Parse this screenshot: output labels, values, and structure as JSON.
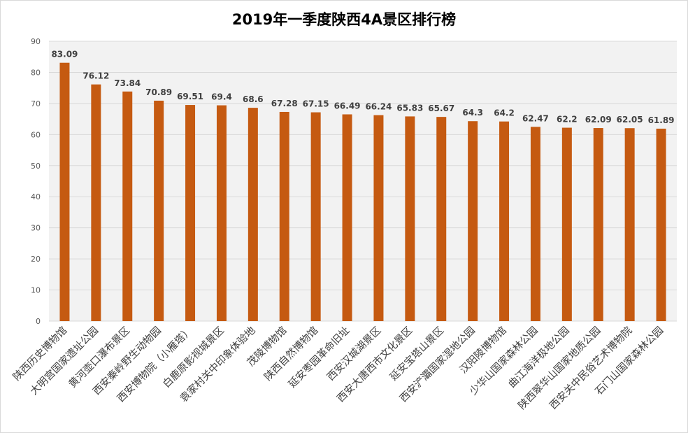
{
  "chart_data": {
    "type": "bar",
    "title": "2019年一季度陕西4A景区排行榜",
    "xlabel": "",
    "ylabel": "",
    "ylim": [
      0,
      90
    ],
    "yticks": [
      0,
      10,
      20,
      30,
      40,
      50,
      60,
      70,
      80,
      90
    ],
    "grid": true,
    "legend": "none",
    "bar_color": "#c55a11",
    "plot_background": "#f2f2f2",
    "categories": [
      "陕西历史博物馆",
      "大明宫国家遗址公园",
      "黄河壶口瀑布景区",
      "西安秦岭野生动物园",
      "西安博物院（小雁塔）",
      "白鹿原影视城景区",
      "袁家村关中印象体验地",
      "茂陵博物馆",
      "陕西自然博物馆",
      "延安枣园革命旧址",
      "西安汉城湖景区",
      "西安大唐西市文化景区",
      "延安宝塔山景区",
      "西安浐灞国家湿地公园",
      "汉阳陵博物馆",
      "少华山国家森林公园",
      "曲江海洋极地公园",
      "陕西翠华山国家地质公园",
      "西安关中民俗艺术博物院",
      "石门山国家森林公园"
    ],
    "values": [
      83.09,
      76.12,
      73.84,
      70.89,
      69.51,
      69.4,
      68.6,
      67.28,
      67.15,
      66.49,
      66.24,
      65.83,
      65.67,
      64.3,
      64.2,
      62.47,
      62.2,
      62.09,
      62.05,
      61.89
    ],
    "value_labels": [
      "83.09",
      "76.12",
      "73.84",
      "70.89",
      "69.51",
      "69.4",
      "68.6",
      "67.28",
      "67.15",
      "66.49",
      "66.24",
      "65.83",
      "65.67",
      "64.3",
      "64.2",
      "62.47",
      "62.2",
      "62.09",
      "62.05",
      "61.89"
    ]
  }
}
